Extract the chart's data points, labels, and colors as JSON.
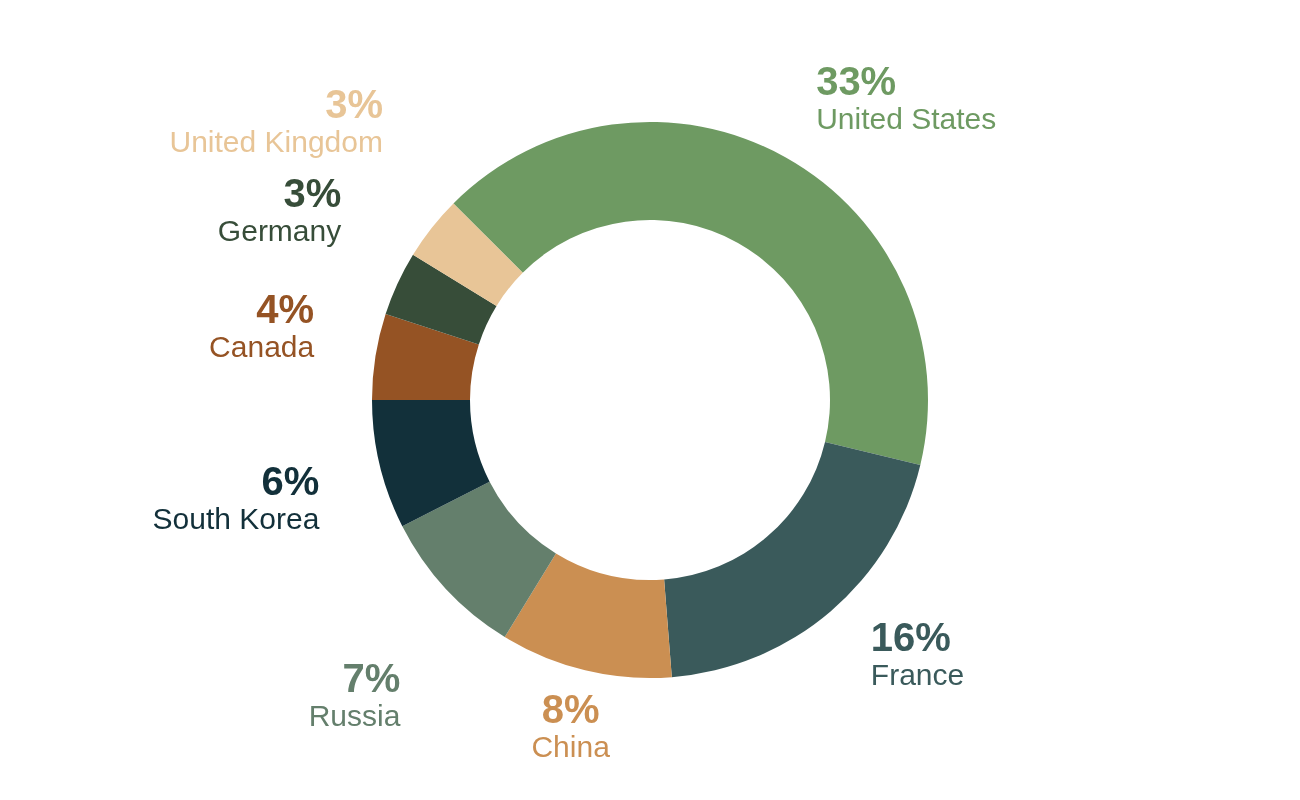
{
  "chart_data": {
    "type": "donut",
    "categories": [
      "United States",
      "France",
      "China",
      "Russia",
      "South Korea",
      "Canada",
      "Germany",
      "United Kingdom"
    ],
    "values": [
      33,
      16,
      8,
      7,
      6,
      4,
      3,
      3
    ],
    "value_labels": [
      "33%",
      "16%",
      "8%",
      "7%",
      "6%",
      "4%",
      "3%",
      "3%"
    ],
    "colors": [
      "#6e9a62",
      "#3a5a5b",
      "#cb8f52",
      "#647f6c",
      "#12303a",
      "#955324",
      "#374d39",
      "#e8c597"
    ]
  }
}
